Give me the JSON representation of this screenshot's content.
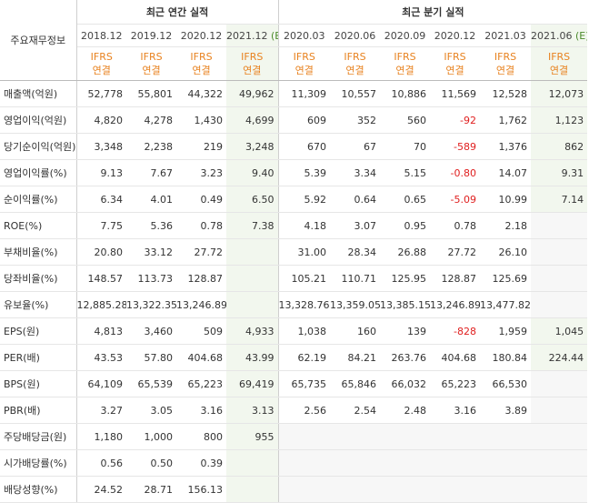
{
  "header": {
    "row_label": "주요재무정보",
    "annual_title": "최근 연간 실적",
    "quarterly_title": "최근 분기 실적",
    "ifrs_top": "IFRS",
    "ifrs_bottom": "연결",
    "estimate_tag": "(E)",
    "annual_periods": [
      "2018.12",
      "2019.12",
      "2020.12",
      "2021.12"
    ],
    "quarterly_periods": [
      "2020.03",
      "2020.06",
      "2020.09",
      "2020.12",
      "2021.03",
      "2021.06"
    ]
  },
  "rows": [
    {
      "label": "매출액(억원)",
      "group_start": true,
      "values": [
        "52,778",
        "55,801",
        "44,322",
        "49,962",
        "11,309",
        "10,557",
        "10,886",
        "11,569",
        "12,528",
        "12,073"
      ]
    },
    {
      "label": "영업이익(억원)",
      "group_start": false,
      "values": [
        "4,820",
        "4,278",
        "1,430",
        "4,699",
        "609",
        "352",
        "560",
        "-92",
        "1,762",
        "1,123"
      ]
    },
    {
      "label": "당기순이익(억원)",
      "group_start": false,
      "values": [
        "3,348",
        "2,238",
        "219",
        "3,248",
        "670",
        "67",
        "70",
        "-589",
        "1,376",
        "862"
      ]
    },
    {
      "label": "영업이익률(%)",
      "group_start": true,
      "values": [
        "9.13",
        "7.67",
        "3.23",
        "9.40",
        "5.39",
        "3.34",
        "5.15",
        "-0.80",
        "14.07",
        "9.31"
      ]
    },
    {
      "label": "순이익률(%)",
      "group_start": false,
      "values": [
        "6.34",
        "4.01",
        "0.49",
        "6.50",
        "5.92",
        "0.64",
        "0.65",
        "-5.09",
        "10.99",
        "7.14"
      ]
    },
    {
      "label": "ROE(%)",
      "group_start": false,
      "values": [
        "7.75",
        "5.36",
        "0.78",
        "7.38",
        "4.18",
        "3.07",
        "0.95",
        "0.78",
        "2.18",
        ""
      ]
    },
    {
      "label": "부채비율(%)",
      "group_start": true,
      "values": [
        "20.80",
        "33.12",
        "27.72",
        "",
        "31.00",
        "28.34",
        "26.88",
        "27.72",
        "26.10",
        ""
      ]
    },
    {
      "label": "당좌비율(%)",
      "group_start": false,
      "values": [
        "148.57",
        "113.73",
        "128.87",
        "",
        "105.21",
        "110.71",
        "125.95",
        "128.87",
        "125.69",
        ""
      ]
    },
    {
      "label": "유보율(%)",
      "group_start": false,
      "values": [
        "12,885.28",
        "13,322.35",
        "13,246.89",
        "",
        "13,328.76",
        "13,359.05",
        "13,385.15",
        "13,246.89",
        "13,477.82",
        ""
      ]
    },
    {
      "label": "EPS(원)",
      "group_start": true,
      "values": [
        "4,813",
        "3,460",
        "509",
        "4,933",
        "1,038",
        "160",
        "139",
        "-828",
        "1,959",
        "1,045"
      ]
    },
    {
      "label": "PER(배)",
      "group_start": false,
      "values": [
        "43.53",
        "57.80",
        "404.68",
        "43.99",
        "62.19",
        "84.21",
        "263.76",
        "404.68",
        "180.84",
        "224.44"
      ]
    },
    {
      "label": "BPS(원)",
      "group_start": false,
      "values": [
        "64,109",
        "65,539",
        "65,223",
        "69,419",
        "65,735",
        "65,846",
        "66,032",
        "65,223",
        "66,530",
        ""
      ]
    },
    {
      "label": "PBR(배)",
      "group_start": false,
      "values": [
        "3.27",
        "3.05",
        "3.16",
        "3.13",
        "2.56",
        "2.54",
        "2.48",
        "3.16",
        "3.89",
        ""
      ]
    },
    {
      "label": "주당배당금(원)",
      "group_start": true,
      "values": [
        "1,180",
        "1,000",
        "800",
        "955",
        "",
        "",
        "",
        "",
        "",
        ""
      ]
    },
    {
      "label": "시가배당률(%)",
      "group_start": false,
      "values": [
        "0.56",
        "0.50",
        "0.39",
        "",
        "",
        "",
        "",
        "",
        "",
        ""
      ]
    },
    {
      "label": "배당성향(%)",
      "group_start": false,
      "values": [
        "24.52",
        "28.71",
        "156.13",
        "",
        "",
        "",
        "",
        "",
        "",
        ""
      ]
    }
  ],
  "colors": {
    "negative": "#e02020",
    "ifrs": "#e8821f",
    "estimate_bg": "#f2f7ee"
  }
}
